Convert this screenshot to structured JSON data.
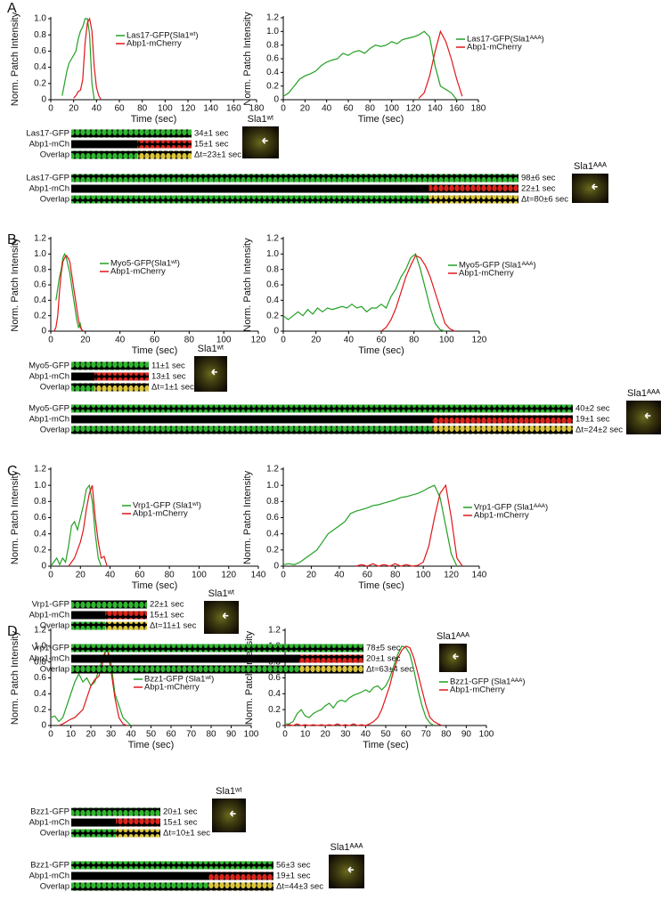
{
  "panels": [
    "A",
    "B",
    "C",
    "D"
  ],
  "chart_data": [
    {
      "type": "line",
      "xlabel": "Time (sec)",
      "ylabel": "Norm. Patch Intensity",
      "xlim": [
        0,
        180
      ],
      "xticks": [
        0,
        20,
        40,
        60,
        80,
        100,
        120,
        140,
        160,
        180
      ],
      "ylim": [
        0,
        1
      ],
      "yticks": [
        0,
        0.2,
        0.4,
        0.6,
        0.8,
        {
          "value": 1,
          "label": "1.0"
        }
      ],
      "x": [
        10,
        12,
        14,
        16,
        18,
        20,
        22,
        24,
        26,
        28,
        30,
        32,
        34,
        36,
        38,
        40,
        42,
        44
      ],
      "series": [
        {
          "name": "Las17-GFP(Sla1ʷᵗ)",
          "color": "#22a022",
          "values": [
            0.05,
            0.2,
            0.35,
            0.45,
            0.5,
            0.55,
            0.6,
            0.75,
            0.85,
            0.9,
            1.0,
            1.0,
            0.8,
            0.2,
            0,
            null,
            null,
            null
          ]
        },
        {
          "name": "Abp1-mCherry",
          "color": "#e0161a",
          "values": [
            null,
            null,
            null,
            null,
            null,
            0.02,
            0.05,
            0.1,
            0.12,
            0.25,
            0.7,
            0.95,
            1.0,
            0.85,
            0.4,
            0.15,
            0.05,
            0
          ]
        }
      ]
    },
    {
      "type": "line",
      "xlabel": "Time (sec)",
      "ylabel": "Norm. Patch Intensity",
      "xlim": [
        0,
        180
      ],
      "xticks": [
        0,
        20,
        40,
        60,
        80,
        100,
        120,
        140,
        160,
        180
      ],
      "ylim": [
        0,
        1.2
      ],
      "yticks": [
        0,
        0.2,
        0.4,
        0.6,
        0.8,
        {
          "value": 1,
          "label": "1.0"
        },
        1.2
      ],
      "x": [
        0,
        5,
        10,
        15,
        20,
        25,
        30,
        35,
        40,
        45,
        50,
        55,
        60,
        65,
        70,
        75,
        80,
        85,
        90,
        95,
        100,
        105,
        110,
        115,
        120,
        125,
        130,
        135,
        140,
        145,
        150,
        155,
        160,
        165,
        170
      ],
      "series": [
        {
          "name": "Las17-GFP(Sla1ᴬᴬᴬ)",
          "color": "#22a022",
          "values": [
            0.05,
            0.1,
            0.2,
            0.3,
            0.35,
            0.38,
            0.42,
            0.5,
            0.55,
            0.58,
            0.6,
            0.68,
            0.65,
            0.7,
            0.72,
            0.68,
            0.75,
            0.8,
            0.78,
            0.8,
            0.85,
            0.82,
            0.88,
            0.9,
            0.92,
            0.95,
            1.0,
            0.92,
            0.5,
            0.2,
            0.15,
            0.1,
            0,
            null,
            null
          ]
        },
        {
          "name": "Abp1-mCherry",
          "color": "#e0161a",
          "values": [
            null,
            null,
            null,
            null,
            null,
            null,
            null,
            null,
            null,
            null,
            null,
            null,
            null,
            null,
            null,
            null,
            null,
            null,
            null,
            null,
            null,
            null,
            null,
            null,
            null,
            0.02,
            0.1,
            0.35,
            0.7,
            1.0,
            0.85,
            0.6,
            0.3,
            0.05,
            null
          ]
        }
      ]
    },
    {
      "type": "line",
      "xlabel": "Time (sec)",
      "ylabel": "Norm. Patch Intensity",
      "xlim": [
        0,
        120
      ],
      "xticks": [
        0,
        20,
        40,
        60,
        80,
        100,
        120
      ],
      "ylim": [
        0,
        1.2
      ],
      "yticks": [
        0,
        0.2,
        0.4,
        0.6,
        0.8,
        {
          "value": 1,
          "label": "1.0"
        },
        1.2
      ],
      "x": [
        2,
        3,
        4,
        5,
        6,
        7,
        8,
        9,
        10,
        11,
        12,
        13,
        14,
        15,
        16,
        17,
        18,
        19
      ],
      "series": [
        {
          "name": "Myo5-GFP(Sla1ʷᵗ)",
          "color": "#22a022",
          "values": [
            null,
            0.4,
            0.55,
            0.7,
            0.8,
            0.95,
            1.0,
            0.95,
            0.85,
            0.75,
            0.6,
            0.45,
            0.3,
            0.15,
            0.05,
            0.1,
            0,
            null
          ]
        },
        {
          "name": "Abp1-mCherry",
          "color": "#e0161a",
          "values": [
            0,
            0.05,
            0.2,
            0.5,
            0.75,
            0.9,
            0.95,
            0.98,
            0.95,
            0.9,
            0.75,
            0.6,
            0.45,
            0.3,
            0.15,
            0.05,
            0.02,
            0
          ]
        }
      ]
    },
    {
      "type": "line",
      "xlabel": "Time (sec)",
      "ylabel": "Norm. Patch Intensity",
      "xlim": [
        0,
        120
      ],
      "xticks": [
        0,
        20,
        40,
        60,
        80,
        100,
        120
      ],
      "ylim": [
        0,
        1.2
      ],
      "yticks": [
        0,
        0.2,
        0.4,
        0.6,
        0.8,
        {
          "value": 1,
          "label": "1.0"
        },
        1.2
      ],
      "x": [
        0,
        3,
        6,
        9,
        12,
        15,
        18,
        21,
        24,
        27,
        30,
        33,
        36,
        39,
        42,
        45,
        48,
        51,
        54,
        57,
        60,
        63,
        66,
        69,
        72,
        75,
        78,
        81,
        84,
        87,
        90,
        93,
        96,
        99,
        102,
        105
      ],
      "series": [
        {
          "name": "Myo5-GFP (Sla1ᴬᴬᴬ)",
          "color": "#22a022",
          "values": [
            0.2,
            0.15,
            0.2,
            0.25,
            0.2,
            0.28,
            0.22,
            0.3,
            0.25,
            0.3,
            0.28,
            0.3,
            0.32,
            0.3,
            0.35,
            0.3,
            0.32,
            0.25,
            0.3,
            0.3,
            0.35,
            0.3,
            0.45,
            0.55,
            0.7,
            0.8,
            0.95,
            1.0,
            0.8,
            0.55,
            0.3,
            0.1,
            0.02,
            0,
            null,
            null
          ]
        },
        {
          "name": "Abp1-mCherry",
          "color": "#e0161a",
          "values": [
            null,
            null,
            null,
            null,
            null,
            null,
            null,
            null,
            null,
            null,
            null,
            null,
            null,
            null,
            null,
            null,
            null,
            null,
            null,
            null,
            0,
            0.05,
            0.15,
            0.3,
            0.5,
            0.7,
            0.85,
            0.98,
            0.95,
            0.85,
            0.7,
            0.5,
            0.3,
            0.1,
            0.03,
            0
          ]
        }
      ]
    },
    {
      "type": "line",
      "xlabel": "Time (sec)",
      "ylabel": "Norm. Patch Intensity",
      "xlim": [
        0,
        140
      ],
      "xticks": [
        0,
        20,
        40,
        60,
        80,
        100,
        120,
        140
      ],
      "ylim": [
        0,
        1.2
      ],
      "yticks": [
        0,
        0.2,
        0.4,
        0.6,
        0.8,
        {
          "value": 1,
          "label": "1.0"
        },
        1.2
      ],
      "x": [
        0,
        2,
        4,
        6,
        8,
        10,
        12,
        14,
        16,
        18,
        20,
        22,
        24,
        26,
        28,
        30,
        32,
        34,
        36,
        38
      ],
      "series": [
        {
          "name": "Vrp1-GFP (Sla1ʷᵗ)",
          "color": "#22a022",
          "values": [
            0,
            0.05,
            0.1,
            0.02,
            0.1,
            0.05,
            0.25,
            0.5,
            0.55,
            0.45,
            0.6,
            0.75,
            0.95,
            1.0,
            0.8,
            0.4,
            0.1,
            0,
            null,
            null
          ]
        },
        {
          "name": "Abp1-mCherry",
          "color": "#e0161a",
          "values": [
            null,
            null,
            null,
            null,
            null,
            null,
            0,
            0.05,
            0.1,
            0.2,
            0.3,
            0.45,
            0.7,
            0.9,
            1.0,
            0.6,
            0.3,
            0.1,
            0.12,
            0
          ]
        }
      ]
    },
    {
      "type": "line",
      "xlabel": "Time (sec)",
      "ylabel": "Norm. Patch Intensity",
      "xlim": [
        0,
        140
      ],
      "xticks": [
        0,
        20,
        40,
        60,
        80,
        100,
        120,
        140
      ],
      "ylim": [
        0,
        1.2
      ],
      "yticks": [
        0,
        0.2,
        0.4,
        0.6,
        0.8,
        {
          "value": 1,
          "label": "1.0"
        },
        1.2
      ],
      "x": [
        0,
        4,
        8,
        12,
        16,
        20,
        24,
        28,
        32,
        36,
        40,
        44,
        48,
        52,
        56,
        60,
        64,
        68,
        72,
        76,
        80,
        84,
        88,
        92,
        96,
        100,
        104,
        108,
        112,
        116,
        120,
        124,
        128
      ],
      "series": [
        {
          "name": "Vrp1-GFP (Sla1ᴬᴬᴬ)",
          "color": "#22a022",
          "values": [
            0.02,
            0.03,
            0.02,
            0.05,
            0.1,
            0.15,
            0.2,
            0.3,
            0.4,
            0.45,
            0.5,
            0.55,
            0.65,
            0.68,
            0.7,
            0.72,
            0.75,
            0.76,
            0.78,
            0.8,
            0.82,
            0.85,
            0.86,
            0.88,
            0.9,
            0.93,
            0.97,
            1.0,
            0.85,
            0.5,
            0.15,
            0,
            null
          ]
        },
        {
          "name": "Abp1-mCherry",
          "color": "#e0161a",
          "values": [
            null,
            null,
            null,
            null,
            null,
            null,
            null,
            null,
            null,
            null,
            null,
            null,
            null,
            0,
            0.02,
            0,
            0.03,
            0,
            0.02,
            0,
            0.03,
            0,
            0.02,
            0,
            0.01,
            0.05,
            0.25,
            0.6,
            0.9,
            1.0,
            0.6,
            0.1,
            0
          ]
        }
      ]
    },
    {
      "type": "line",
      "xlabel": "Time (sec)",
      "ylabel": "Norm. Patch Intensity",
      "xlim": [
        0,
        100
      ],
      "xticks": [
        0,
        10,
        20,
        30,
        40,
        50,
        60,
        70,
        80,
        90,
        100
      ],
      "ylim": [
        0,
        1.2
      ],
      "yticks": [
        0,
        0.2,
        0.4,
        0.6,
        0.8,
        {
          "value": 1,
          "label": "1.0"
        },
        1.2
      ],
      "x": [
        0,
        2,
        4,
        6,
        8,
        10,
        12,
        14,
        16,
        18,
        20,
        22,
        24,
        26,
        28,
        30,
        32,
        34,
        36,
        38,
        40
      ],
      "series": [
        {
          "name": "Bzz1-GFP (Sla1ʷᵗ)",
          "color": "#22a022",
          "values": [
            0.1,
            0.12,
            0.05,
            0.1,
            0.25,
            0.4,
            0.55,
            0.65,
            0.55,
            0.6,
            0.5,
            0.55,
            0.7,
            0.85,
            1.0,
            0.8,
            0.4,
            0.25,
            0.1,
            0.05,
            0
          ]
        },
        {
          "name": "Abp1-mCherry",
          "color": "#e0161a",
          "values": [
            null,
            null,
            0,
            0.02,
            0.05,
            0.08,
            0.1,
            0.15,
            0.2,
            0.35,
            0.5,
            0.58,
            0.62,
            0.8,
            1.0,
            0.7,
            0.35,
            0.1,
            0.02,
            0,
            null
          ]
        }
      ]
    },
    {
      "type": "line",
      "xlabel": "Time (sec)",
      "ylabel": "Norm. Patch Intensity",
      "xlim": [
        0,
        100
      ],
      "xticks": [
        0,
        10,
        20,
        30,
        40,
        50,
        60,
        70,
        80,
        90,
        100
      ],
      "ylim": [
        0,
        1.2
      ],
      "yticks": [
        0,
        0.2,
        0.4,
        0.6,
        0.8,
        {
          "value": 1,
          "label": "1.0"
        },
        1.2
      ],
      "x": [
        0,
        2,
        4,
        6,
        8,
        10,
        12,
        14,
        16,
        18,
        20,
        22,
        24,
        26,
        28,
        30,
        32,
        34,
        36,
        38,
        40,
        42,
        44,
        46,
        48,
        50,
        52,
        54,
        56,
        58,
        60,
        62,
        64,
        66,
        68,
        70,
        72,
        74,
        76,
        78,
        80
      ],
      "series": [
        {
          "name": "Bzz1-GFP (Sla1ᴬᴬᴬ)",
          "color": "#22a022",
          "values": [
            0.02,
            0.02,
            0.05,
            0.15,
            0.2,
            0.12,
            0.1,
            0.15,
            0.18,
            0.2,
            0.25,
            0.28,
            0.22,
            0.3,
            0.32,
            0.3,
            0.35,
            0.38,
            0.4,
            0.42,
            0.45,
            0.42,
            0.48,
            0.5,
            0.45,
            0.5,
            0.6,
            0.75,
            0.9,
            1.0,
            0.98,
            0.9,
            0.7,
            0.45,
            0.25,
            0.1,
            0.03,
            0,
            null,
            null,
            null
          ]
        },
        {
          "name": "Abp1-mCherry",
          "color": "#e0161a",
          "values": [
            0,
            0.01,
            0,
            0.02,
            0,
            0.01,
            0,
            0.01,
            0,
            0.01,
            0,
            0.01,
            0,
            0.02,
            0,
            0.01,
            0,
            0.02,
            0,
            0.01,
            0,
            0.02,
            0.05,
            0.1,
            0.2,
            0.35,
            0.5,
            0.7,
            0.85,
            0.95,
            1.0,
            0.98,
            0.85,
            0.65,
            0.45,
            0.25,
            0.1,
            0.05,
            0.02,
            0,
            null
          ]
        }
      ]
    }
  ],
  "kymographs": [
    {
      "rows": [
        {
          "label": "Las17-GFP",
          "time": "34±1 sec"
        },
        {
          "label": "Abp1-mCh",
          "time": "15±1 sec"
        },
        {
          "label": "Overlap",
          "time": "Δt=23±1 sec"
        }
      ],
      "cell_label": "Sla1ʷᵗ"
    },
    {
      "rows": [
        {
          "label": "Las17-GFP",
          "time": "98±6 sec"
        },
        {
          "label": "Abp1-mCh",
          "time": "22±1 sec"
        },
        {
          "label": "Overlap",
          "time": "Δt=80±6 sec"
        }
      ],
      "cell_label": "Sla1ᴬᴬᴬ"
    },
    {
      "rows": [
        {
          "label": "Myo5-GFP",
          "time": "11±1 sec"
        },
        {
          "label": "Abp1-mCh",
          "time": "13±1 sec"
        },
        {
          "label": "Overlap",
          "time": "Δt=1±1 sec"
        }
      ],
      "cell_label": "Sla1ʷᵗ"
    },
    {
      "rows": [
        {
          "label": "Myo5-GFP",
          "time": "40±2 sec"
        },
        {
          "label": "Abp1-mCh",
          "time": "19±1 sec"
        },
        {
          "label": "Overlap",
          "time": "Δt=24±2 sec"
        }
      ],
      "cell_label": "Sla1ᴬᴬᴬ"
    },
    {
      "rows": [
        {
          "label": "Vrp1-GFP",
          "time": "22±1 sec"
        },
        {
          "label": "Abp1-mCh",
          "time": "15±1 sec"
        },
        {
          "label": "Overlap",
          "time": "Δt=11±1 sec"
        }
      ],
      "cell_label": "Sla1ʷᵗ"
    },
    {
      "rows": [
        {
          "label": "Vrp1-GFP",
          "time": "78±5 sec"
        },
        {
          "label": "Abp1-mCh",
          "time": "20±1 sec"
        },
        {
          "label": "Overlap",
          "time": "Δt=63±4 sec"
        }
      ],
      "cell_label": "Sla1ᴬᴬᴬ"
    },
    {
      "rows": [
        {
          "label": "Bzz1-GFP",
          "time": "20±1 sec"
        },
        {
          "label": "Abp1-mCh",
          "time": "15±1 sec"
        },
        {
          "label": "Overlap",
          "time": "Δt=10±1 sec"
        }
      ],
      "cell_label": "Sla1ʷᵗ"
    },
    {
      "rows": [
        {
          "label": "Bzz1-GFP",
          "time": "56±3 sec"
        },
        {
          "label": "Abp1-mCh",
          "time": "19±1 sec"
        },
        {
          "label": "Overlap",
          "time": "Δt=44±3 sec"
        }
      ],
      "cell_label": "Sla1ᴬᴬᴬ"
    }
  ]
}
